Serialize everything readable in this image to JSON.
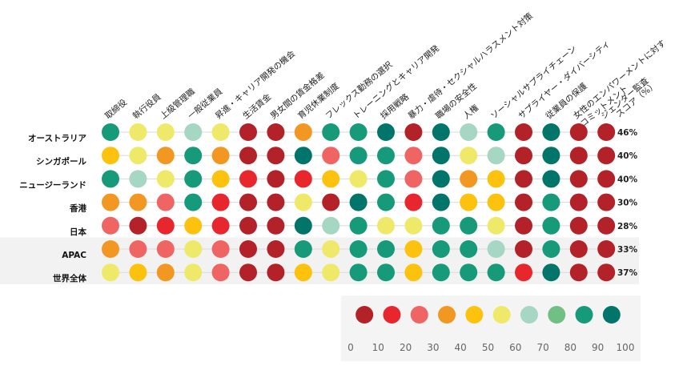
{
  "chart_data": {
    "type": "heatmap",
    "title": "",
    "columns": [
      "取締役",
      "執行役員",
      "上級管理職",
      "一般従業員",
      "昇進・キャリア開発の機会",
      "生活賃金",
      "男女間の賃金格差",
      "育児休業制度",
      "フレックス勤務の選択",
      "トレーニングとキャリア開発",
      "採用戦略",
      "暴力・虐待・セクシャルハラスメント対策",
      "職場の安全性",
      "人権",
      "ソーシャルサプライチェーン",
      "サプライヤー・ダイバーシティ",
      "従業員の保護",
      "女性のエンパワーメントに対するコミットメント",
      "ジェンダー監査"
    ],
    "column_label_lines": [
      [
        "取締役"
      ],
      [
        "執行役員"
      ],
      [
        "上級管理職"
      ],
      [
        "一般従業員"
      ],
      [
        "昇進・キャリア開発の機会"
      ],
      [
        "生活賃金"
      ],
      [
        "男女間の賃金格差"
      ],
      [
        "育児休業制度"
      ],
      [
        "フレックス勤務の選択"
      ],
      [
        "トレーニングとキャリア開発"
      ],
      [
        "採用戦略"
      ],
      [
        "暴力・虐待・セクシャルハラスメント対策"
      ],
      [
        "職場の安全性"
      ],
      [
        "人権"
      ],
      [
        "ソーシャルサプライチェーン"
      ],
      [
        "サプライヤー・ダイバーシティ"
      ],
      [
        "従業員の保護"
      ],
      [
        "女性のエンパワーメントに対す",
        "るコミットメント"
      ],
      [
        "ジェンダー監査"
      ]
    ],
    "score_header": "スコア（%）",
    "rows": [
      {
        "label": "オーストラリア",
        "score": "46%",
        "highlight": false,
        "values": [
          85,
          55,
          55,
          65,
          55,
          5,
          5,
          35,
          85,
          85,
          95,
          5,
          95,
          65,
          85,
          5,
          95,
          5,
          5
        ]
      },
      {
        "label": "シンガポール",
        "score": "40%",
        "highlight": false,
        "values": [
          45,
          55,
          35,
          85,
          35,
          5,
          5,
          95,
          25,
          85,
          85,
          25,
          95,
          55,
          65,
          5,
          95,
          5,
          5
        ]
      },
      {
        "label": "ニュージーランド",
        "score": "40%",
        "highlight": false,
        "values": [
          85,
          65,
          55,
          85,
          45,
          15,
          5,
          15,
          45,
          55,
          85,
          25,
          95,
          35,
          45,
          5,
          95,
          5,
          5
        ]
      },
      {
        "label": "香港",
        "score": "30%",
        "highlight": false,
        "values": [
          35,
          35,
          25,
          85,
          15,
          5,
          5,
          55,
          5,
          95,
          85,
          15,
          95,
          45,
          45,
          5,
          85,
          5,
          5
        ]
      },
      {
        "label": "日本",
        "score": "28%",
        "highlight": false,
        "values": [
          25,
          5,
          15,
          45,
          15,
          5,
          5,
          95,
          65,
          85,
          55,
          55,
          85,
          85,
          55,
          5,
          85,
          5,
          5
        ]
      },
      {
        "label": "APAC",
        "score": "33%",
        "highlight": true,
        "values": [
          35,
          25,
          25,
          55,
          25,
          5,
          5,
          85,
          55,
          85,
          85,
          45,
          85,
          85,
          65,
          5,
          85,
          5,
          5
        ]
      },
      {
        "label": "世界全体",
        "score": "37%",
        "highlight": true,
        "values": [
          55,
          45,
          35,
          55,
          25,
          5,
          5,
          45,
          55,
          85,
          85,
          45,
          85,
          85,
          85,
          15,
          95,
          5,
          5
        ]
      }
    ],
    "legend": {
      "ticks": [
        0,
        10,
        20,
        30,
        40,
        50,
        60,
        70,
        80,
        90,
        100
      ],
      "bins": [
        {
          "value": 5,
          "color": "#b32129"
        },
        {
          "value": 15,
          "color": "#e8262d"
        },
        {
          "value": 25,
          "color": "#ee6563"
        },
        {
          "value": 35,
          "color": "#f29722"
        },
        {
          "value": 45,
          "color": "#fcc20d"
        },
        {
          "value": 55,
          "color": "#efe96a"
        },
        {
          "value": 65,
          "color": "#a5d7c3"
        },
        {
          "value": 75,
          "color": "#72bf85"
        },
        {
          "value": 85,
          "color": "#169a7a"
        },
        {
          "value": 95,
          "color": "#01756a"
        }
      ]
    },
    "colors": {
      "highlight_band": "#f2f2f2",
      "gridline": "#d9d9d9",
      "legend_background": "#f4f4f4"
    }
  }
}
